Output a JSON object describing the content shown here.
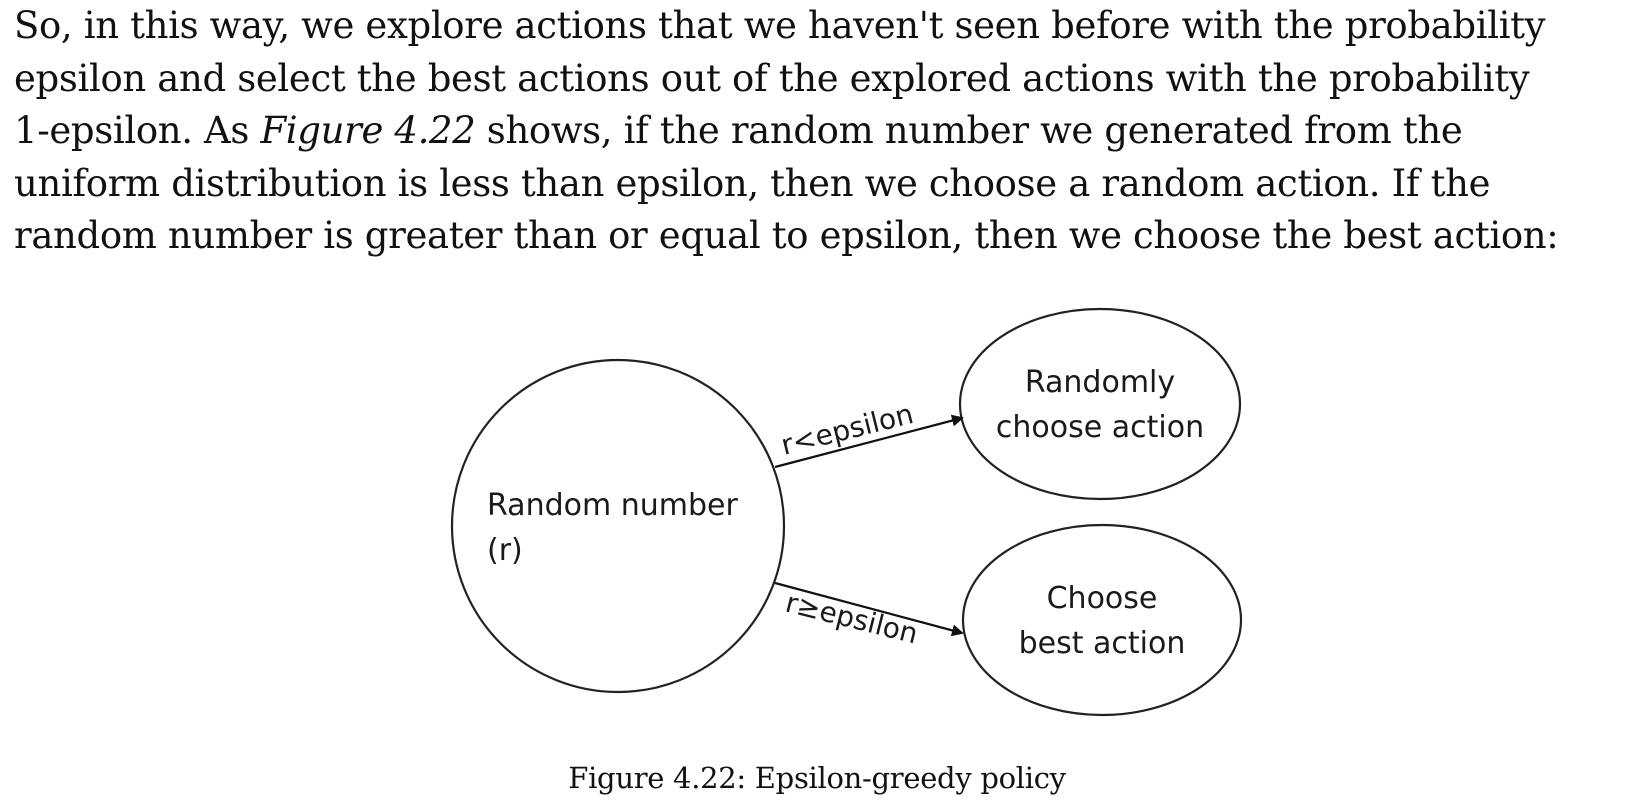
{
  "paragraph": {
    "line1": "So, in this way, we explore actions that we haven't seen before with the probability",
    "line2": "epsilon and select the best actions out of the explored actions with the probability",
    "line3_before": "1-epsilon. As ",
    "line3_figure_ref": "Figure 4.22",
    "line3_after": " shows, if the random number we generated from the",
    "line4": "uniform distribution is less than epsilon, then we choose a random action. If the",
    "line5": "random number is greater than or equal to epsilon, then we choose the best action:"
  },
  "diagram": {
    "source_node": {
      "line1": "Random number",
      "line2": "(r)"
    },
    "random_node": {
      "line1": "Randomly",
      "line2": "choose action"
    },
    "best_node": {
      "line1": "Choose",
      "line2": "best action"
    },
    "edge_random_label": "r<epsilon",
    "edge_best_label": "r≥epsilon"
  },
  "caption": "Figure 4.22: Epsilon-greedy policy"
}
